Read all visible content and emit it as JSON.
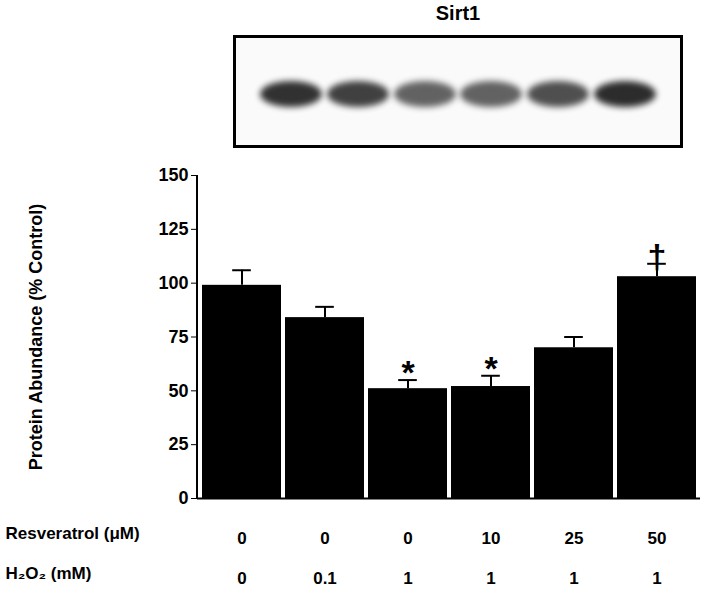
{
  "chart_data": {
    "type": "bar",
    "title": "Sirt1",
    "categories": [
      null,
      null,
      null,
      null,
      null,
      null
    ],
    "values": [
      99,
      84,
      51,
      52,
      70,
      103
    ],
    "errors": [
      7,
      5,
      4,
      5,
      5,
      6
    ],
    "color": "#000000",
    "ylabel": "Protein Abundance (% Control)",
    "ylim": [
      0,
      150
    ],
    "yticks": [
      0,
      25,
      50,
      75,
      100,
      125,
      150
    ],
    "grid": false,
    "x_label_rows": [
      {
        "label": "Resveratrol (μM)",
        "values": [
          0,
          0,
          0,
          10,
          25,
          50
        ]
      },
      {
        "label": "H₂O₂ (mM)",
        "values": [
          0,
          0.1,
          1,
          1,
          1,
          1
        ]
      }
    ],
    "annotations": [
      {
        "index": 2,
        "text": "*"
      },
      {
        "index": 3,
        "text": "*"
      },
      {
        "index": 5,
        "text": "†"
      }
    ]
  }
}
